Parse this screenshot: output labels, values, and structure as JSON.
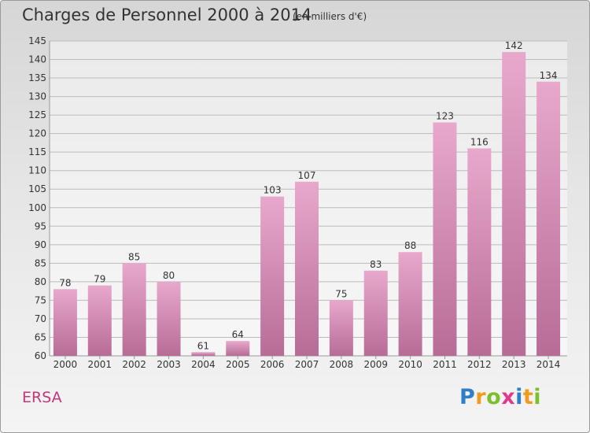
{
  "header": {
    "title": "Charges de Personnel 2000 à 2014",
    "subtitle": "(en milliers d'€)"
  },
  "footer": {
    "location": "ERSA",
    "logo_text": "Proxiti",
    "logo_letters": [
      {
        "ch": "P",
        "color": "#2e7fc8"
      },
      {
        "ch": "r",
        "color": "#f29a1e"
      },
      {
        "ch": "o",
        "color": "#7cbf2c"
      },
      {
        "ch": "x",
        "color": "#e23a8c"
      },
      {
        "ch": "i",
        "color": "#2e7fc8"
      },
      {
        "ch": "t",
        "color": "#f29a1e"
      },
      {
        "ch": "i",
        "color": "#7cbf2c"
      }
    ]
  },
  "chart_data": {
    "type": "bar",
    "title": "Charges de Personnel 2000 à 2014",
    "subtitle": "(en milliers d'€)",
    "categories": [
      "2000",
      "2001",
      "2002",
      "2003",
      "2004",
      "2005",
      "2006",
      "2007",
      "2008",
      "2009",
      "2010",
      "2011",
      "2012",
      "2013",
      "2014"
    ],
    "values": [
      78,
      79,
      85,
      80,
      61,
      64,
      103,
      107,
      75,
      83,
      88,
      123,
      116,
      142,
      134
    ],
    "ylim": [
      60,
      145
    ],
    "yticks": [
      60,
      65,
      70,
      75,
      80,
      85,
      90,
      95,
      100,
      105,
      110,
      115,
      120,
      125,
      130,
      135,
      140,
      145
    ],
    "grid": true,
    "legend": "none",
    "colors": {
      "bar_light": "#e8a8cc",
      "bar_dark": "#b76c96",
      "grid": "#bbbbbb",
      "axis_text": "#333333"
    }
  }
}
